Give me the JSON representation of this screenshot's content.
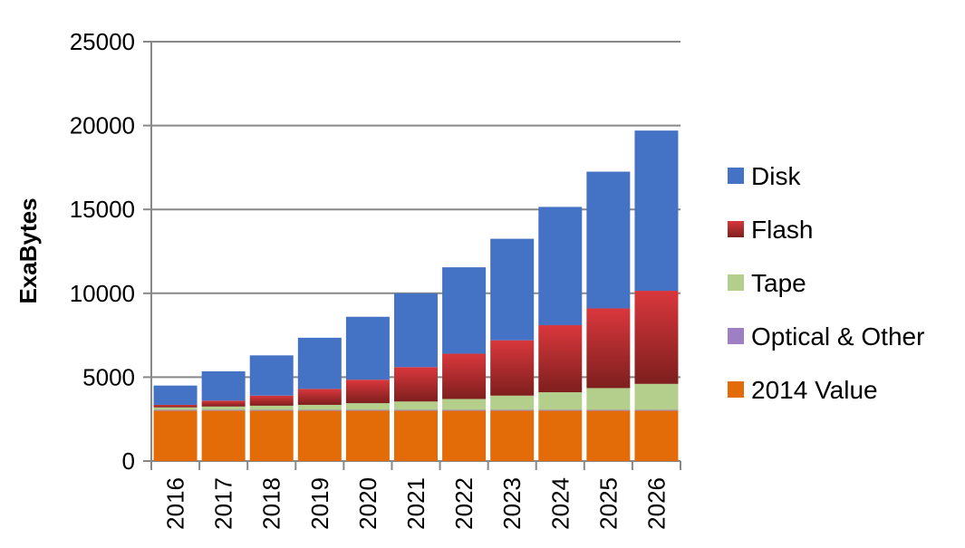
{
  "chart_data": {
    "type": "bar",
    "stacked": true,
    "categories": [
      "2016",
      "2017",
      "2018",
      "2019",
      "2020",
      "2021",
      "2022",
      "2023",
      "2024",
      "2025",
      "2026"
    ],
    "ylabel": "ExaBytes",
    "xlabel": "",
    "title": "",
    "ylim": [
      0,
      25000
    ],
    "yticks": [
      0,
      5000,
      10000,
      15000,
      20000,
      25000
    ],
    "grid": true,
    "legend_position": "right",
    "series": [
      {
        "name": "2014 Value",
        "color": "#E36C09",
        "values": [
          3000,
          3000,
          3000,
          3000,
          3000,
          3000,
          3000,
          3000,
          3000,
          3000,
          3000
        ]
      },
      {
        "name": "Optical & Other",
        "color": "#9F7FC4",
        "values": [
          50,
          50,
          50,
          50,
          50,
          50,
          50,
          50,
          50,
          50,
          50
        ]
      },
      {
        "name": "Tape",
        "color": "#B3CF8B",
        "values": [
          150,
          200,
          250,
          300,
          400,
          500,
          650,
          850,
          1050,
          1300,
          1550
        ]
      },
      {
        "name": "Flash",
        "color": "#C0262C",
        "values": [
          150,
          350,
          600,
          950,
          1400,
          2050,
          2700,
          3300,
          4000,
          4750,
          5550
        ]
      },
      {
        "name": "Disk",
        "color": "#4472C4",
        "values": [
          1150,
          1750,
          2400,
          3050,
          3750,
          4400,
          5150,
          6050,
          7050,
          8150,
          9550
        ]
      }
    ],
    "legend_order": [
      "Disk",
      "Flash",
      "Tape",
      "Optical & Other",
      "2014 Value"
    ]
  }
}
